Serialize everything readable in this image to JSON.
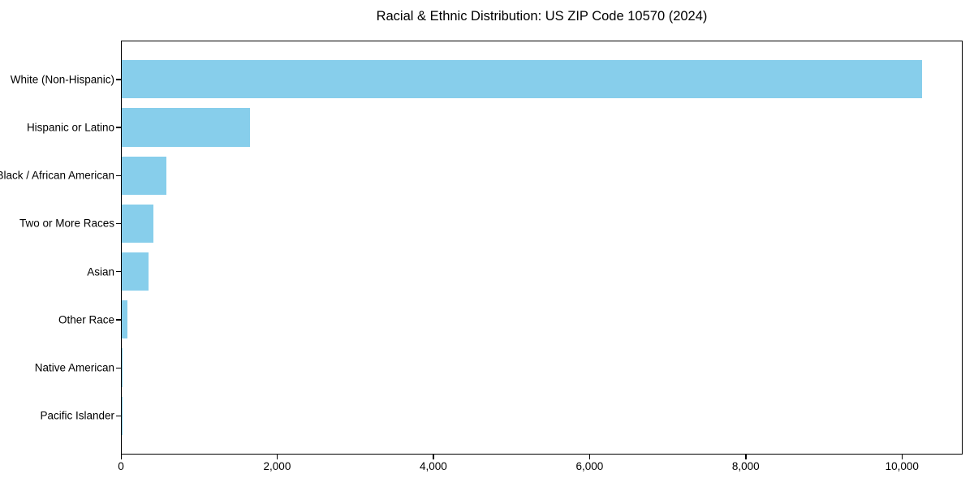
{
  "figure": {
    "title": "Racial & Ethnic Distribution: US ZIP Code 10570 (2024)"
  },
  "chart_data": {
    "type": "bar",
    "orientation": "horizontal",
    "title": "Racial & Ethnic Distribution: US ZIP Code 10570 (2024)",
    "categories": [
      "White (Non-Hispanic)",
      "Hispanic or Latino",
      "Black / African American",
      "Two or More Races",
      "Asian",
      "Other Race",
      "Native American",
      "Pacific Islander"
    ],
    "values": [
      10250,
      1640,
      570,
      410,
      340,
      70,
      8,
      2
    ],
    "xlabel": "",
    "ylabel": "",
    "xlim": [
      0,
      10756
    ],
    "xticks": [
      0,
      2000,
      4000,
      6000,
      8000,
      10000
    ],
    "xtick_labels": [
      "0",
      "2,000",
      "4,000",
      "6,000",
      "8,000",
      "10,000"
    ],
    "bar_color": "#87CEEB",
    "grid": false,
    "legend_position": "none",
    "bar_relative_height": 0.8
  }
}
